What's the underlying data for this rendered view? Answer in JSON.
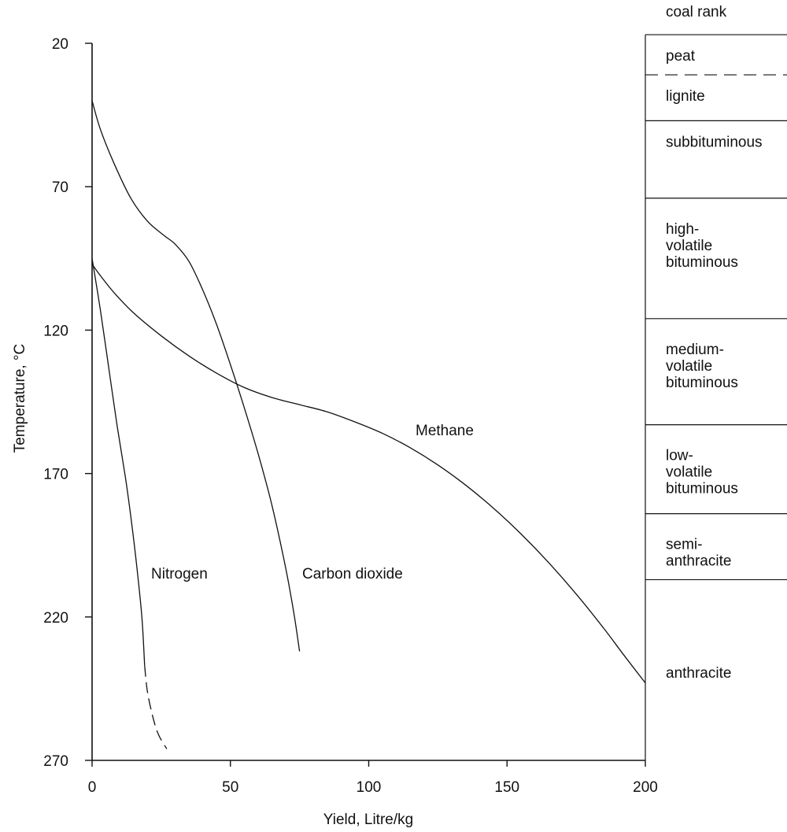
{
  "chart_data": {
    "type": "line",
    "title": "",
    "xlabel": "Yield, Litre/kg",
    "ylabel": "Temperature, °C",
    "xlim": [
      0,
      200
    ],
    "ylim": [
      20,
      270
    ],
    "y_inverted": true,
    "x_ticks": [
      "0",
      "50",
      "100",
      "150",
      "200"
    ],
    "y_ticks": [
      "20",
      "70",
      "120",
      "170",
      "220",
      "270"
    ],
    "grid": false,
    "legend": "none (curves labelled directly)",
    "series": [
      {
        "name": "Methane",
        "x": [
          0,
          3,
          8,
          15,
          25,
          35,
          45,
          55,
          65,
          75,
          85,
          95,
          105,
          115,
          125,
          135,
          145,
          155,
          165,
          175,
          185,
          192,
          200
        ],
        "y": [
          97,
          101,
          107,
          114,
          122,
          129,
          135,
          140,
          143.5,
          146,
          148.5,
          152,
          156,
          161,
          167,
          174,
          182,
          191,
          201,
          212,
          224,
          233,
          243
        ]
      },
      {
        "name": "Carbon dioxide",
        "x": [
          0,
          3,
          8,
          14,
          20,
          26,
          30,
          35,
          40,
          45,
          50,
          55,
          60,
          65,
          70,
          73,
          75
        ],
        "y": [
          40,
          50,
          62,
          74,
          82,
          87,
          90,
          96,
          106,
          118,
          132,
          147,
          163,
          181,
          203,
          219,
          232
        ]
      },
      {
        "name": "Nitrogen",
        "x": [
          0,
          3,
          6,
          9,
          12,
          14,
          16,
          18,
          19
        ],
        "y": [
          95,
          113,
          133,
          153,
          171,
          185,
          201,
          220,
          237
        ]
      },
      {
        "name": "Nitrogen",
        "line_style": "dashed",
        "x": [
          19,
          20,
          22,
          24,
          27
        ],
        "y": [
          237,
          246,
          255,
          261,
          266
        ]
      }
    ],
    "annotations": [
      "Methane",
      "Carbon dioxide",
      "Nitrogen"
    ]
  },
  "coal_rank": {
    "header": "coal rank",
    "bands": [
      {
        "label_lines": [
          "peat"
        ],
        "top_c": 17,
        "bottom_c": 31
      },
      {
        "label_lines": [
          "lignite"
        ],
        "top_c": 31,
        "bottom_c": 47
      },
      {
        "label_lines": [
          "subbituminous"
        ],
        "top_c": 47,
        "bottom_c": 74
      },
      {
        "label_lines": [
          "high-",
          "volatile",
          "bituminous"
        ],
        "top_c": 74,
        "bottom_c": 116
      },
      {
        "label_lines": [
          "medium-",
          "volatile",
          "bituminous"
        ],
        "top_c": 116,
        "bottom_c": 153
      },
      {
        "label_lines": [
          "low-",
          "volatile",
          "bituminous"
        ],
        "top_c": 153,
        "bottom_c": 184
      },
      {
        "label_lines": [
          "semi-",
          "anthracite"
        ],
        "top_c": 184,
        "bottom_c": 207
      },
      {
        "label_lines": [
          "anthracite"
        ],
        "top_c": 207,
        "bottom_c": 270
      }
    ],
    "dashed_boundaries_c": [
      31
    ]
  }
}
